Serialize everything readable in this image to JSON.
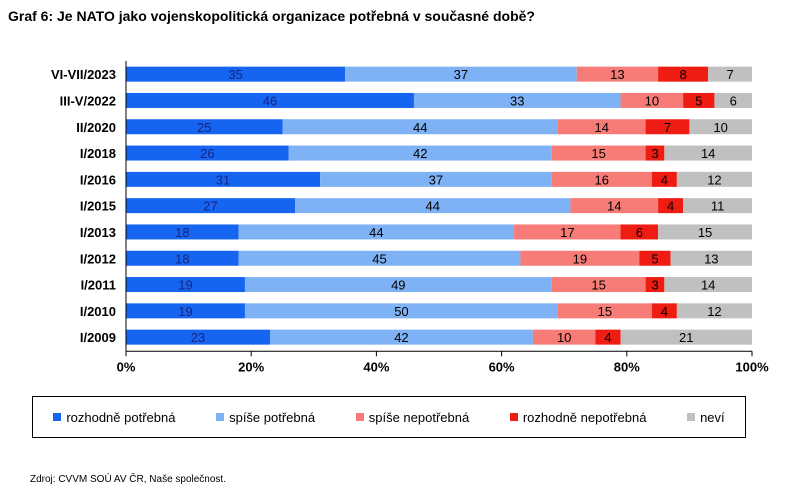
{
  "title": "Graf 6: Je NATO jako vojenskopolitická organizace potřebná v současné době?",
  "source": "Zdroj: CVVM SOÚ AV ČR, Naše společnost.",
  "chart_data": {
    "type": "bar",
    "orientation": "horizontal",
    "stacked": true,
    "percent_scale": true,
    "categories": [
      "VI-VII/2023",
      "III-V/2022",
      "II/2020",
      "I/2018",
      "I/2016",
      "I/2015",
      "I/2013",
      "I/2012",
      "I/2011",
      "I/2010",
      "I/2009"
    ],
    "series": [
      {
        "name": "rozhodně potřebná",
        "color": "#1565f0",
        "values": [
          35,
          46,
          25,
          26,
          31,
          27,
          18,
          18,
          19,
          19,
          23
        ]
      },
      {
        "name": "spíše potřebná",
        "color": "#7fb2f5",
        "values": [
          37,
          33,
          44,
          42,
          37,
          44,
          44,
          45,
          49,
          50,
          42
        ]
      },
      {
        "name": "spíše nepotřebná",
        "color": "#f77b76",
        "values": [
          13,
          10,
          14,
          15,
          16,
          14,
          17,
          19,
          15,
          15,
          10
        ]
      },
      {
        "name": "rozhodně nepotřebná",
        "color": "#ee1c12",
        "values": [
          8,
          5,
          7,
          3,
          4,
          4,
          6,
          5,
          3,
          4,
          4
        ]
      },
      {
        "name": "neví",
        "color": "#c0c0c0",
        "values": [
          7,
          6,
          10,
          14,
          12,
          11,
          15,
          13,
          14,
          12,
          21
        ]
      }
    ],
    "xlim": [
      0,
      100
    ],
    "xticks": [
      "0%",
      "20%",
      "40%",
      "60%",
      "80%",
      "100%"
    ],
    "grid": false,
    "legend_position": "bottom"
  }
}
